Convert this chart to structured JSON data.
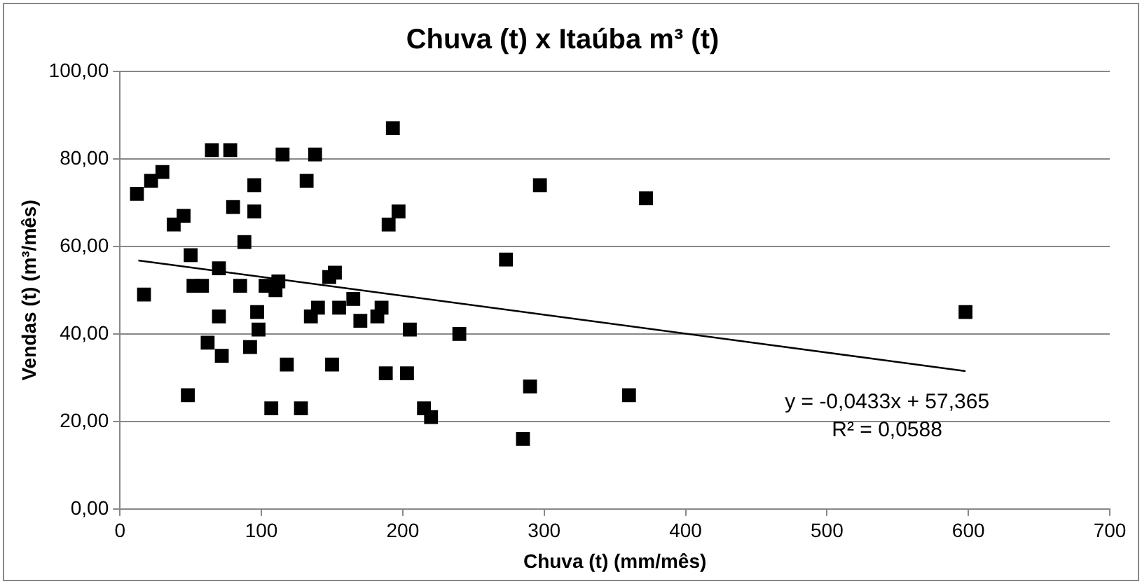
{
  "chart_data": {
    "type": "scatter",
    "title": "Chuva (t) x Itaúba m³ (t)",
    "xlabel": "Chuva (t) (mm/mês)",
    "ylabel": "Vendas (t) (m³/mês)",
    "xlim": [
      0,
      700
    ],
    "xticks": [
      0,
      100,
      200,
      300,
      400,
      500,
      600,
      700
    ],
    "ylim": [
      0,
      100
    ],
    "yticks": [
      {
        "value": 0,
        "label": "0,00"
      },
      {
        "value": 20,
        "label": "20,00"
      },
      {
        "value": 40,
        "label": "40,00"
      },
      {
        "value": 60,
        "label": "60,00"
      },
      {
        "value": 80,
        "label": "80,00"
      },
      {
        "value": 100,
        "label": "100,00"
      }
    ],
    "grid": "y",
    "legend": false,
    "marker": "square",
    "series": [
      {
        "type": "scatter",
        "color": "#000000",
        "x": [
          12,
          17,
          22,
          30,
          38,
          45,
          48,
          50,
          52,
          58,
          62,
          65,
          70,
          70,
          72,
          78,
          80,
          85,
          88,
          92,
          95,
          95,
          97,
          98,
          103,
          107,
          110,
          112,
          115,
          118,
          128,
          132,
          135,
          138,
          140,
          148,
          150,
          152,
          155,
          165,
          170,
          182,
          185,
          188,
          190,
          193,
          197,
          203,
          205,
          215,
          220,
          240,
          273,
          285,
          290,
          297,
          360,
          372,
          598
        ],
        "values": [
          72,
          49,
          75,
          77,
          65,
          67,
          26,
          58,
          51,
          51,
          38,
          82,
          55,
          44,
          35,
          82,
          69,
          51,
          61,
          37,
          74,
          68,
          45,
          41,
          51,
          23,
          50,
          52,
          81,
          33,
          23,
          75,
          44,
          81,
          46,
          53,
          33,
          54,
          46,
          48,
          43,
          44,
          46,
          31,
          65,
          87,
          68,
          31,
          41,
          23,
          21,
          40,
          57,
          16,
          28,
          74,
          26,
          71,
          45
        ]
      },
      {
        "type": "line",
        "color": "#000000",
        "marker": "none",
        "x": [
          13,
          598
        ],
        "values": [
          56.8,
          31.5
        ]
      }
    ],
    "annotations": [
      "y = -0,0433x + 57,365",
      "R² = 0,0588"
    ]
  }
}
